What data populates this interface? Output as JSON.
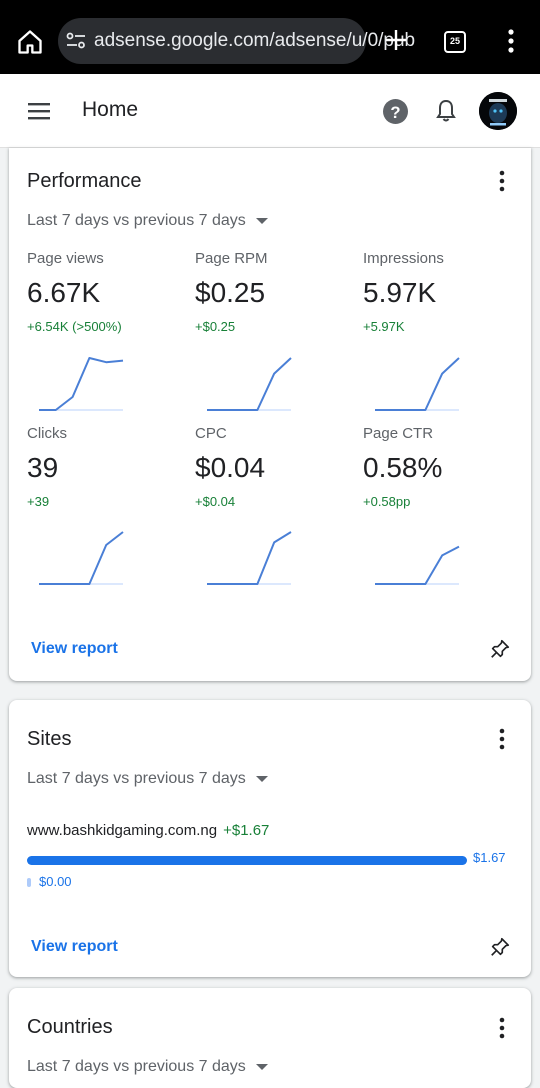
{
  "browser": {
    "url": "adsense.google.com/adsense/u/0/pub",
    "tab_count": "25"
  },
  "header": {
    "title": "Home"
  },
  "performance": {
    "title": "Performance",
    "range_label": "Last 7 days vs previous 7 days",
    "metrics": [
      {
        "label": "Page views",
        "value": "6.67K",
        "delta": "+6.54K (>500%)",
        "spark": [
          0,
          0,
          0.25,
          1,
          0.92,
          0.95
        ]
      },
      {
        "label": "Page RPM",
        "value": "$0.25",
        "delta": "+$0.25",
        "spark": [
          0,
          0,
          0,
          0,
          0.7,
          1
        ]
      },
      {
        "label": "Impressions",
        "value": "5.97K",
        "delta": "+5.97K",
        "spark": [
          0,
          0,
          0,
          0,
          0.7,
          1
        ]
      },
      {
        "label": "Clicks",
        "value": "39",
        "delta": "+39",
        "spark": [
          0,
          0,
          0,
          0,
          0.75,
          1
        ]
      },
      {
        "label": "CPC",
        "value": "$0.04",
        "delta": "+$0.04",
        "spark": [
          0,
          0,
          0,
          0,
          0.8,
          1
        ]
      },
      {
        "label": "Page CTR",
        "value": "0.58%",
        "delta": "+0.58pp",
        "spark": [
          0,
          0,
          0,
          0,
          0.55,
          0.72
        ]
      }
    ],
    "view_report_label": "View report"
  },
  "sites": {
    "title": "Sites",
    "range_label": "Last 7 days vs previous 7 days",
    "site_name": "www.bashkidgaming.com.ng",
    "site_gain": "+$1.67",
    "current_value": "$1.67",
    "current_fraction": 1.0,
    "previous_value": "$0.00",
    "view_report_label": "View report"
  },
  "countries": {
    "title": "Countries",
    "range_label": "Last 7 days vs previous 7 days"
  },
  "colors": {
    "accent": "#1a73e8",
    "positive": "#188038",
    "spark_line": "#4a7fd6"
  }
}
